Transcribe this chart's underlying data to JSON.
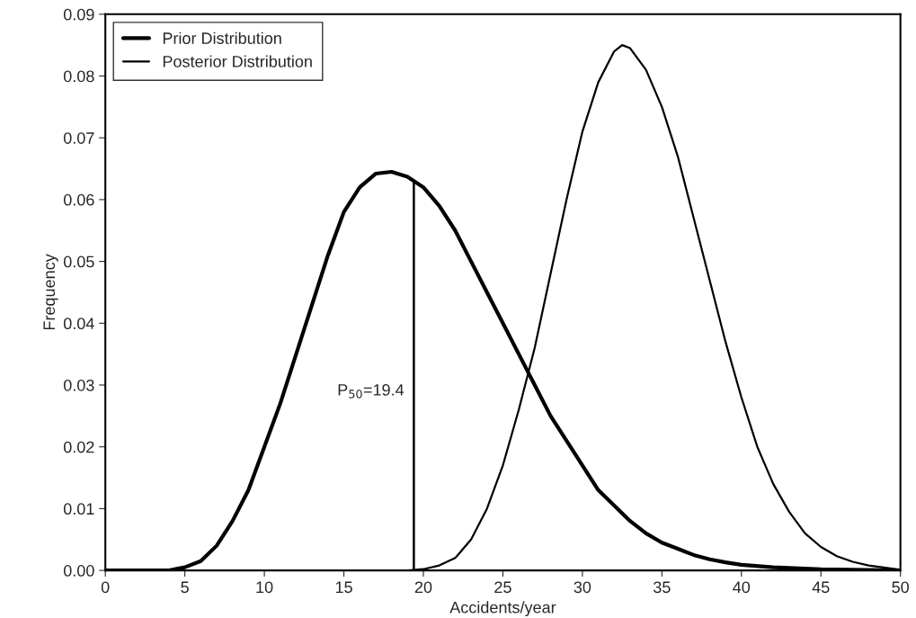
{
  "chart_data": {
    "type": "line",
    "xlabel": "Accidents/year",
    "ylabel": "Frequency",
    "xlim": [
      0,
      50
    ],
    "xticks": [
      0,
      5,
      10,
      15,
      20,
      25,
      30,
      35,
      40,
      45,
      50
    ],
    "ylim": [
      0,
      0.09
    ],
    "yticks": [
      {
        "value": 0,
        "label": "0.00"
      },
      {
        "value": 0.01,
        "label": "0.01"
      },
      {
        "value": 0.02,
        "label": "0.02"
      },
      {
        "value": 0.03,
        "label": "0.03"
      },
      {
        "value": 0.04,
        "label": "0.04"
      },
      {
        "value": 0.05,
        "label": "0.05"
      },
      {
        "value": 0.06,
        "label": "0.06"
      },
      {
        "value": 0.07,
        "label": "0.07"
      },
      {
        "value": 0.08,
        "label": "0.08"
      },
      {
        "value": 0.09,
        "label": "0.09"
      }
    ],
    "series": [
      {
        "name": "Prior Distribution",
        "color": "#000000",
        "x": [
          0,
          4,
          5,
          6,
          7,
          8,
          9,
          10,
          11,
          12,
          13,
          14,
          15,
          16,
          17,
          18,
          19,
          20,
          21,
          22,
          23,
          24,
          25,
          26,
          27,
          28,
          29,
          30,
          31,
          32,
          33,
          34,
          35,
          36,
          37,
          38,
          39,
          40,
          42,
          45,
          50
        ],
        "values": [
          0,
          0,
          0.0005,
          0.0015,
          0.004,
          0.008,
          0.013,
          0.02,
          0.027,
          0.035,
          0.043,
          0.051,
          0.058,
          0.062,
          0.0642,
          0.0645,
          0.0637,
          0.062,
          0.059,
          0.055,
          0.05,
          0.045,
          0.04,
          0.035,
          0.03,
          0.025,
          0.021,
          0.017,
          0.013,
          0.0105,
          0.008,
          0.006,
          0.0045,
          0.0035,
          0.0025,
          0.0018,
          0.0013,
          0.0009,
          0.0005,
          0.0002,
          0
        ]
      },
      {
        "name": "Posterior Distribution",
        "color": "#000000",
        "x": [
          0,
          19,
          20,
          21,
          22,
          23,
          24,
          25,
          26,
          27,
          28,
          29,
          30,
          31,
          32,
          32.5,
          33,
          34,
          35,
          36,
          37,
          38,
          39,
          40,
          41,
          42,
          43,
          44,
          45,
          46,
          47,
          48,
          50
        ],
        "values": [
          0,
          0,
          0.0002,
          0.0008,
          0.002,
          0.005,
          0.01,
          0.017,
          0.026,
          0.036,
          0.048,
          0.06,
          0.071,
          0.079,
          0.084,
          0.085,
          0.0845,
          0.081,
          0.075,
          0.067,
          0.057,
          0.047,
          0.037,
          0.028,
          0.02,
          0.014,
          0.0095,
          0.006,
          0.0038,
          0.0023,
          0.0014,
          0.0008,
          0.0001
        ]
      }
    ],
    "ref_lines": [
      {
        "axis": "x",
        "value": 19.4,
        "label": "P$_{50}$=19.4",
        "color": "#000000"
      }
    ],
    "grid": false,
    "legend": "top left",
    "marker": "none",
    "line_style": "solid"
  }
}
